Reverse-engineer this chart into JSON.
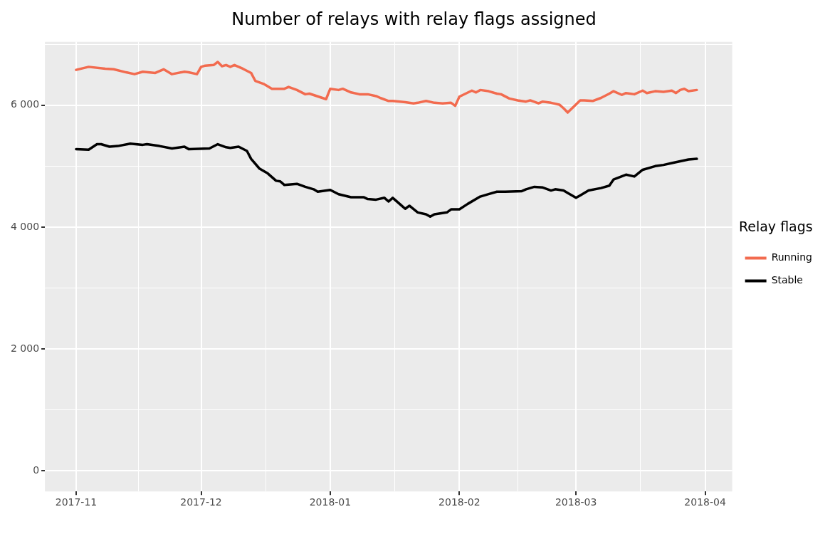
{
  "chart_data": {
    "type": "line",
    "title": "Number of relays with relay flags assigned",
    "legend_title": "Relay flags",
    "legend": "right",
    "grid": true,
    "line_style": "solid",
    "marker": "none",
    "xlim": [
      "2017-10-24T12:00",
      "2018-04-07T12:00"
    ],
    "xticks": [
      {
        "value": "2017-11-01",
        "label": "2017-11"
      },
      {
        "value": "2017-11-16",
        "label": null
      },
      {
        "value": "2017-12-01",
        "label": "2017-12"
      },
      {
        "value": "2017-12-16T12:00",
        "label": null
      },
      {
        "value": "2018-01-01",
        "label": "2018-01"
      },
      {
        "value": "2018-01-16T12:00",
        "label": null
      },
      {
        "value": "2018-02-01",
        "label": "2018-02"
      },
      {
        "value": "2018-02-15",
        "label": null
      },
      {
        "value": "2018-03-01",
        "label": "2018-03"
      },
      {
        "value": "2018-03-16T12:00",
        "label": null
      },
      {
        "value": "2018-04-01",
        "label": "2018-04"
      }
    ],
    "ylim": [
      -340,
      7040
    ],
    "yticks": [
      {
        "value": 0,
        "label": "0"
      },
      {
        "value": 1000,
        "label": null
      },
      {
        "value": 2000,
        "label": "2 000"
      },
      {
        "value": 3000,
        "label": null
      },
      {
        "value": 4000,
        "label": "4 000"
      },
      {
        "value": 5000,
        "label": null
      },
      {
        "value": 6000,
        "label": "6 000"
      },
      {
        "value": 7000,
        "label": null
      }
    ],
    "series": [
      {
        "name": "Running",
        "color": "#f26b4f",
        "x": [
          "2017-11-01",
          "2017-11-04",
          "2017-11-08",
          "2017-11-10",
          "2017-11-13",
          "2017-11-15",
          "2017-11-17",
          "2017-11-20",
          "2017-11-22",
          "2017-11-24",
          "2017-11-27",
          "2017-11-28",
          "2017-11-30",
          "2017-12-01",
          "2017-12-02",
          "2017-12-04",
          "2017-12-05",
          "2017-12-06",
          "2017-12-07",
          "2017-12-08",
          "2017-12-09",
          "2017-12-11",
          "2017-12-13",
          "2017-12-14",
          "2017-12-16",
          "2017-12-18",
          "2017-12-21",
          "2017-12-22",
          "2017-12-24",
          "2017-12-26",
          "2017-12-27",
          "2017-12-31",
          "2018-01-01",
          "2018-01-03",
          "2018-01-04",
          "2018-01-06",
          "2018-01-08",
          "2018-01-10",
          "2018-01-12",
          "2018-01-13",
          "2018-01-15",
          "2018-01-16",
          "2018-01-19",
          "2018-01-21",
          "2018-01-22",
          "2018-01-24",
          "2018-01-26",
          "2018-01-28",
          "2018-01-30",
          "2018-01-31",
          "2018-02-01",
          "2018-02-04",
          "2018-02-05",
          "2018-02-06",
          "2018-02-08",
          "2018-02-10",
          "2018-02-11",
          "2018-02-13",
          "2018-02-15",
          "2018-02-17",
          "2018-02-18",
          "2018-02-20",
          "2018-02-21",
          "2018-02-23",
          "2018-02-25",
          "2018-02-26",
          "2018-02-27",
          "2018-03-02",
          "2018-03-03",
          "2018-03-05",
          "2018-03-07",
          "2018-03-09",
          "2018-03-10",
          "2018-03-12",
          "2018-03-13",
          "2018-03-15",
          "2018-03-17",
          "2018-03-18",
          "2018-03-20",
          "2018-03-22",
          "2018-03-24",
          "2018-03-25",
          "2018-03-26",
          "2018-03-27",
          "2018-03-28",
          "2018-03-30"
        ],
        "values": [
          6580,
          6630,
          6600,
          6590,
          6540,
          6510,
          6550,
          6530,
          6590,
          6510,
          6550,
          6540,
          6510,
          6630,
          6650,
          6660,
          6710,
          6640,
          6660,
          6630,
          6660,
          6600,
          6530,
          6400,
          6350,
          6270,
          6270,
          6300,
          6250,
          6180,
          6190,
          6100,
          6270,
          6250,
          6270,
          6210,
          6180,
          6180,
          6150,
          6120,
          6070,
          6070,
          6050,
          6030,
          6040,
          6070,
          6040,
          6030,
          6040,
          5990,
          6140,
          6240,
          6210,
          6250,
          6230,
          6190,
          6180,
          6110,
          6080,
          6060,
          6080,
          6030,
          6060,
          6040,
          6010,
          5950,
          5880,
          6080,
          6080,
          6070,
          6120,
          6190,
          6230,
          6170,
          6200,
          6180,
          6240,
          6200,
          6230,
          6220,
          6240,
          6200,
          6250,
          6270,
          6230,
          6250
        ]
      },
      {
        "name": "Stable",
        "color": "#000000",
        "x": [
          "2017-11-01",
          "2017-11-04",
          "2017-11-06",
          "2017-11-07",
          "2017-11-09",
          "2017-11-11",
          "2017-11-14",
          "2017-11-17",
          "2017-11-18",
          "2017-11-21",
          "2017-11-24",
          "2017-11-27",
          "2017-11-28",
          "2017-12-03",
          "2017-12-05",
          "2017-12-07",
          "2017-12-08",
          "2017-12-10",
          "2017-12-12",
          "2017-12-13",
          "2017-12-15",
          "2017-12-17",
          "2017-12-19",
          "2017-12-20",
          "2017-12-21",
          "2017-12-24",
          "2017-12-26",
          "2017-12-28",
          "2017-12-29",
          "2018-01-01",
          "2018-01-03",
          "2018-01-06",
          "2018-01-09",
          "2018-01-10",
          "2018-01-12",
          "2018-01-14",
          "2018-01-15",
          "2018-01-16",
          "2018-01-18",
          "2018-01-19",
          "2018-01-20",
          "2018-01-22",
          "2018-01-24",
          "2018-01-25",
          "2018-01-26",
          "2018-01-29",
          "2018-01-30",
          "2018-02-01",
          "2018-02-03",
          "2018-02-06",
          "2018-02-08",
          "2018-02-10",
          "2018-02-12",
          "2018-02-16",
          "2018-02-17",
          "2018-02-19",
          "2018-02-21",
          "2018-02-23",
          "2018-02-24",
          "2018-02-26",
          "2018-02-27",
          "2018-03-01",
          "2018-03-02",
          "2018-03-04",
          "2018-03-07",
          "2018-03-09",
          "2018-03-10",
          "2018-03-13",
          "2018-03-15",
          "2018-03-17",
          "2018-03-20",
          "2018-03-22",
          "2018-03-24",
          "2018-03-26",
          "2018-03-28",
          "2018-03-30"
        ],
        "values": [
          5280,
          5270,
          5360,
          5360,
          5320,
          5330,
          5370,
          5350,
          5360,
          5330,
          5290,
          5320,
          5280,
          5290,
          5360,
          5310,
          5300,
          5320,
          5250,
          5120,
          4960,
          4880,
          4760,
          4750,
          4690,
          4710,
          4660,
          4620,
          4580,
          4610,
          4540,
          4490,
          4490,
          4460,
          4450,
          4480,
          4420,
          4480,
          4360,
          4300,
          4350,
          4240,
          4210,
          4170,
          4210,
          4240,
          4290,
          4290,
          4380,
          4500,
          4540,
          4580,
          4580,
          4590,
          4620,
          4660,
          4650,
          4600,
          4620,
          4600,
          4560,
          4480,
          4520,
          4600,
          4640,
          4680,
          4780,
          4860,
          4830,
          4940,
          5000,
          5020,
          5050,
          5080,
          5110,
          5120
        ]
      }
    ]
  }
}
